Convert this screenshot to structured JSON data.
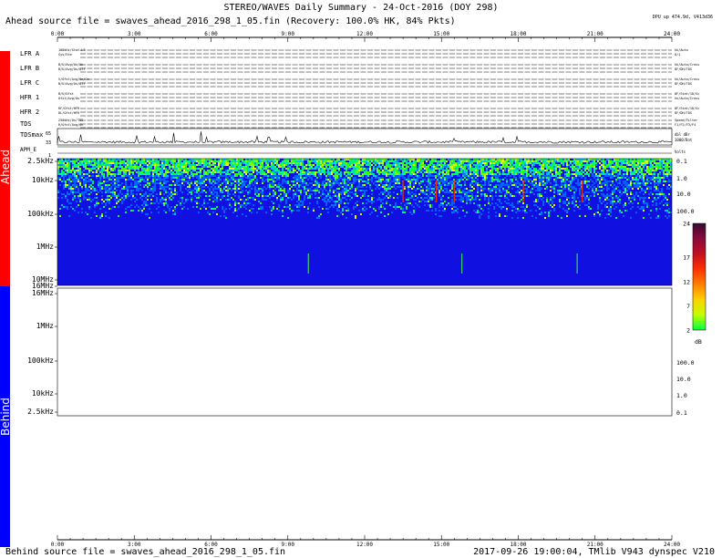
{
  "title": "STEREO/WAVES Daily Summary - 24-Oct-2016 (DOY 298)",
  "ahead_source": "Ahead source file = swaves_ahead_2016_298_1_05.fin (Recovery: 100.0% HK, 84% Pkts)",
  "behind_source": "Behind source file = swaves_ahead_2016_298_1_05.fin",
  "footer_right": "2017-09-26 19:00:04, TMlib V943 dynspec V210",
  "top_right_note": "DPU up 474.9d, V413d36",
  "side_labels": {
    "ahead": "Ahead",
    "behind": "Behind"
  },
  "colors": {
    "ahead_bar": "#ff0000",
    "behind_bar": "#0000ff",
    "spectrogram_bg": "#1010e0"
  },
  "chart_data": {
    "type": "heatmap",
    "x_time_ticks": [
      "0:00",
      "3:00",
      "6:00",
      "9:00",
      "12:00",
      "15:00",
      "18:00",
      "21:00",
      "24:00"
    ],
    "xlim_hours": [
      0,
      24
    ],
    "hk_rows": [
      {
        "name": "LFR A",
        "left_text": "100kHz/Stat.LT",
        "left_text2": "Sys/Ste",
        "right_text": "hk/Auto",
        "right_text2": "0/1"
      },
      {
        "name": "LFR B",
        "left_text": "B/U/Avg/On/On",
        "left_text2": "B/U/Avg/On/Off",
        "right_text": "hk/Auto/Cross",
        "right_text2": "8F/DH/TDS"
      },
      {
        "name": "LFR C",
        "left_text": "V/Ofst/Avg/On/On",
        "left_text2": "B/U/Avg/On/Off",
        "right_text": "hk/Auto/Cross",
        "right_text2": "8F/DH/TDS"
      },
      {
        "name": "HFR 1",
        "left_text": "B/U/Ofst",
        "left_text2": "Ofst/Avg/On",
        "right_text": "8F/Stat/1D/Sc",
        "right_text2": "hk/Auto/Cross"
      },
      {
        "name": "HFR 2",
        "left_text": "RF/Ofst/HFR",
        "left_text2": "DL/Ofst/HFR",
        "right_text": "8F/Stat/1D/Sc",
        "right_text2": "8F/DH/TDS"
      },
      {
        "name": "TDS",
        "left_text": "250kHz/On/TDS",
        "left_text2": "R/Ofst/Avg/On",
        "right_text": "Speed/Filter",
        "right_text2": "F1/F2/F3/F4"
      }
    ],
    "tdsmax": {
      "label": "TDSmax",
      "ticks": [
        65,
        33
      ],
      "right_text": "dbl dBr",
      "right_text2": "1000/Bnt"
    },
    "apm": {
      "label": "APM_E",
      "right_text": "Volts",
      "ticks": [
        1
      ]
    },
    "ahead_freq_labels": [
      "2.5kHz",
      "10kHz",
      "100kHz",
      "1MHz",
      "10MHz",
      "16MHz"
    ],
    "behind_freq_labels": [
      "16MHz",
      "1MHz",
      "100kHz",
      "10kHz",
      "2.5kHz"
    ],
    "ahead_right_scale": [
      "0.1",
      "1.0",
      "10.0",
      "100.0"
    ],
    "behind_right_scale": [
      "100.0",
      "10.0",
      "1.0",
      "0.1"
    ],
    "colorbar": {
      "ticks": [
        "24",
        "17",
        "12",
        "7",
        "2"
      ],
      "unit": "dB",
      "range": [
        2,
        24
      ]
    },
    "ahead_spectrogram": {
      "freq_range": [
        "2.5kHz",
        "16MHz"
      ],
      "noise_band_upper": {
        "from": "2.5kHz",
        "to": "100kHz"
      },
      "red_burst_hours": [
        13.5,
        14.8,
        15.5,
        18.2,
        20.5
      ],
      "green_spike_hours": [
        9.8,
        15.8,
        20.3
      ]
    },
    "behind_spectrogram": {
      "data": "none"
    }
  }
}
